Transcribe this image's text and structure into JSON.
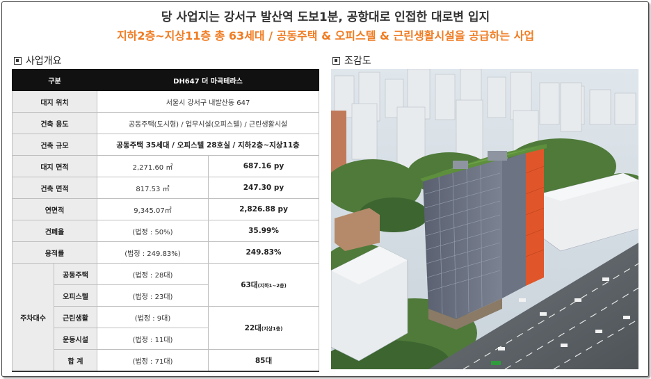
{
  "header": {
    "line1": "당 사업지는 강서구 발산역 도보1분, 공항대로 인접한 대로변 입지",
    "line2": "지하2층~지상11층 총 63세대  /  공동주택 & 오피스텔 & 근린생활시설을 공급하는 사업"
  },
  "overview": {
    "title": "사업개요",
    "header_label": "구분",
    "header_value": "DH647 더 마곡테라스",
    "rows": {
      "site_location": {
        "label": "대지 위치",
        "value": "서울시 강서구 내발산동 647"
      },
      "building_use": {
        "label": "건축 용도",
        "value": "공동주택(도시형) / 업무시설(오피스텔) / 근린생활시설"
      },
      "building_scale": {
        "label": "건축 규모",
        "value": "공동주택 35세대 / 오피스텔 28호실 / 지하2층~지상11층"
      },
      "site_area": {
        "label": "대지 면적",
        "m2": "2,271.60 ㎡",
        "py": "687.16 py"
      },
      "building_area": {
        "label": "건축 면적",
        "m2": "817.53 ㎡",
        "py": "247.30 py"
      },
      "floor_area": {
        "label": "연면적",
        "m2": "9,345.07㎡",
        "py": "2,826.88 py"
      },
      "coverage": {
        "label": "건폐율",
        "legal": "(법정 : 50%)",
        "value": "35.99%"
      },
      "far": {
        "label": "용적률",
        "legal": "(법정 : 249.83%)",
        "value": "249.83%"
      }
    },
    "parking": {
      "label": "주차대수",
      "apartment": {
        "label": "공동주택",
        "legal": "(법정 : 28대)"
      },
      "officetel": {
        "label": "오피스텔",
        "legal": "(법정 : 23대)"
      },
      "group1_value": "63대",
      "group1_note": "(지하1~2층)",
      "retail": {
        "label": "근린생활",
        "legal": "(법정 : 9대)"
      },
      "sports": {
        "label": "운동시설",
        "legal": "(법정 : 11대)"
      },
      "group2_value": "22대",
      "group2_note": "(지상1층)",
      "total": {
        "label": "합 계",
        "legal": "(법정 : 71대)",
        "value": "85대"
      }
    }
  },
  "aerial": {
    "title": "조감도"
  },
  "colors": {
    "accent_orange": "#f07c22",
    "header_black": "#111111",
    "label_gray": "#ececec"
  }
}
